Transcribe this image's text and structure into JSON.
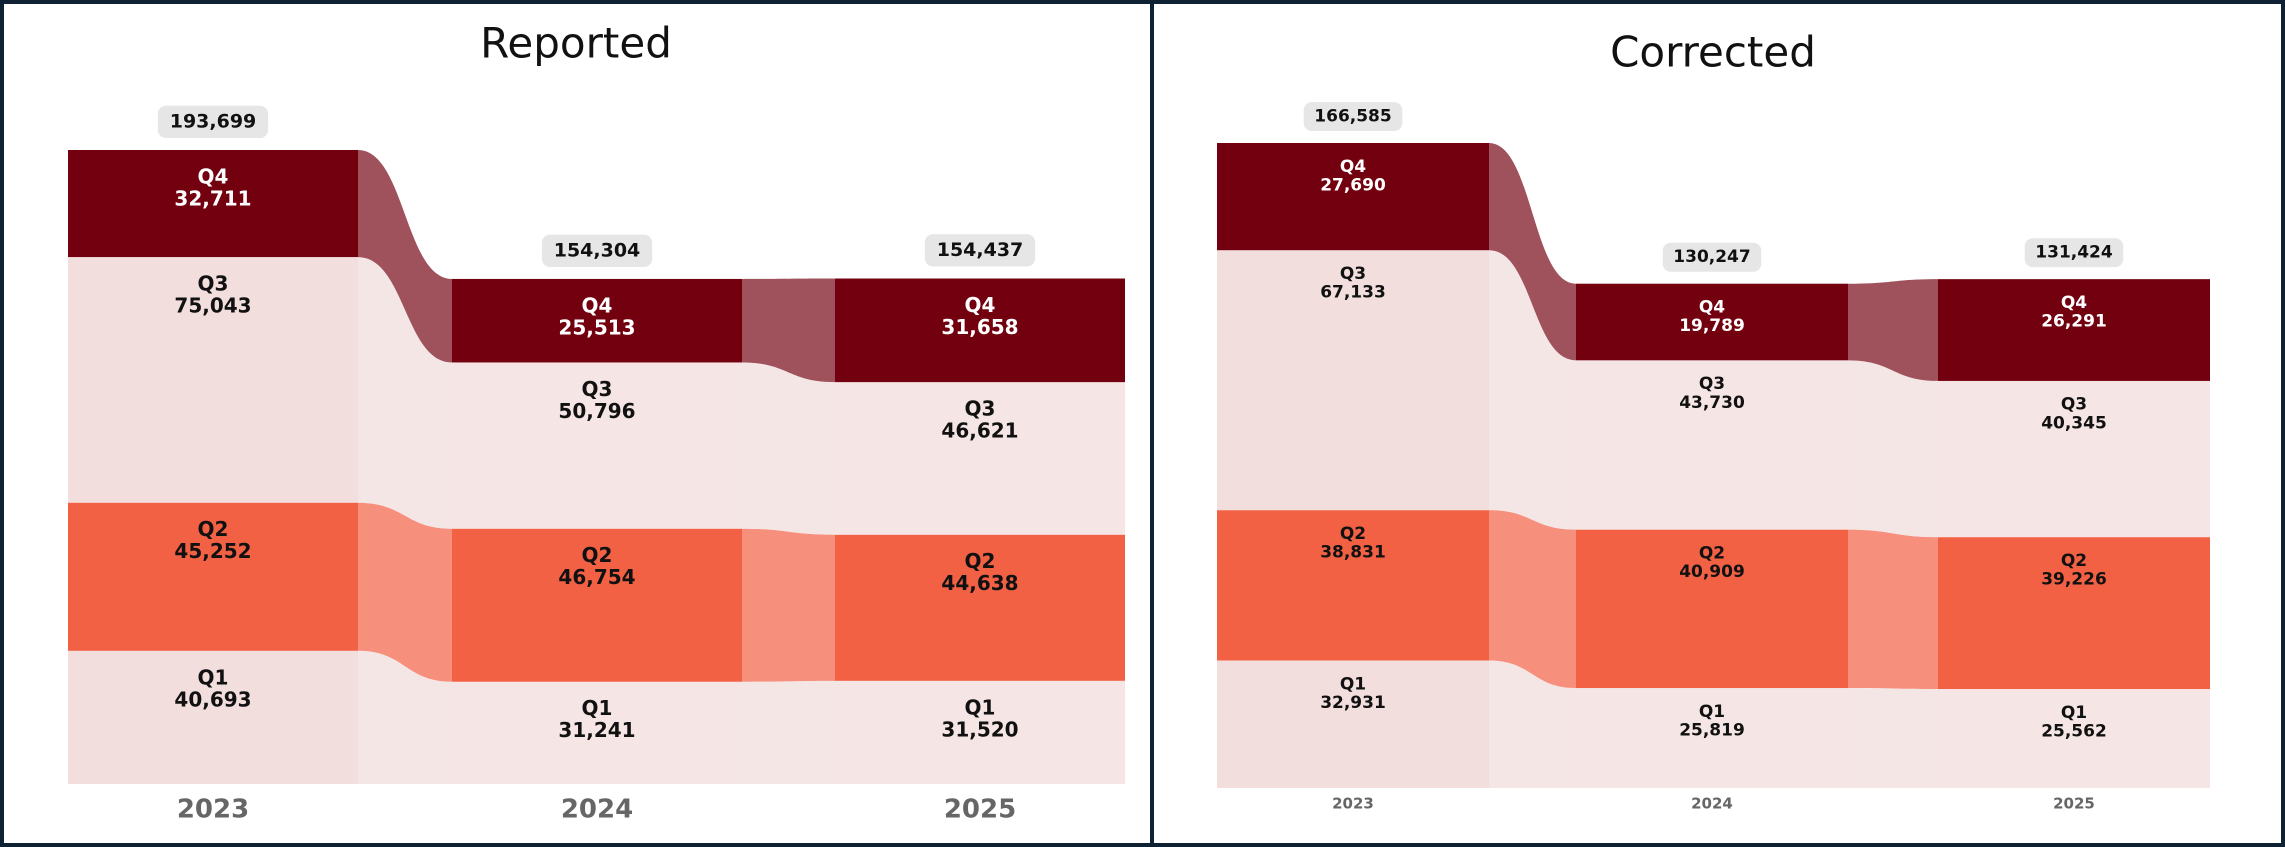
{
  "chart_data": [
    {
      "type": "bar",
      "stacked": true,
      "title": "Reported",
      "categories": [
        "2023",
        "2024",
        "2025"
      ],
      "series": [
        {
          "name": "Q1",
          "color": "#f2dedd",
          "values": [
            40693,
            31241,
            31520
          ],
          "value_labels": [
            "40,693",
            "31,241",
            "31,520"
          ]
        },
        {
          "name": "Q2",
          "color": "#f26144",
          "values": [
            45252,
            46754,
            44638
          ],
          "value_labels": [
            "45,252",
            "46,754",
            "44,638"
          ]
        },
        {
          "name": "Q3",
          "color": "#f2dedd",
          "values": [
            75043,
            50796,
            46621
          ],
          "value_labels": [
            "75,043",
            "50,796",
            "46,621"
          ]
        },
        {
          "name": "Q4",
          "color": "#73000f",
          "values": [
            32711,
            25513,
            31658
          ],
          "value_labels": [
            "32,711",
            "25,513",
            "31,658"
          ]
        }
      ],
      "totals": [
        193699,
        154304,
        154437
      ],
      "total_labels": [
        "193,699",
        "154,304",
        "154,437"
      ]
    },
    {
      "type": "bar",
      "stacked": true,
      "title": "Corrected",
      "categories": [
        "2023",
        "2024",
        "2025"
      ],
      "series": [
        {
          "name": "Q1",
          "color": "#f2dedd",
          "values": [
            32931,
            25819,
            25562
          ],
          "value_labels": [
            "32,931",
            "25,819",
            "25,562"
          ]
        },
        {
          "name": "Q2",
          "color": "#f26144",
          "values": [
            38831,
            40909,
            39226
          ],
          "value_labels": [
            "38,831",
            "40,909",
            "39,226"
          ]
        },
        {
          "name": "Q3",
          "color": "#f2dedd",
          "values": [
            67133,
            43730,
            40345
          ],
          "value_labels": [
            "67,133",
            "43,730",
            "40,345"
          ]
        },
        {
          "name": "Q4",
          "color": "#73000f",
          "values": [
            27690,
            19789,
            26291
          ],
          "value_labels": [
            "27,690",
            "19,789",
            "26,291"
          ]
        }
      ],
      "totals": [
        166585,
        130247,
        131424
      ],
      "total_labels": [
        "166,585",
        "130,247",
        "131,424"
      ]
    }
  ]
}
